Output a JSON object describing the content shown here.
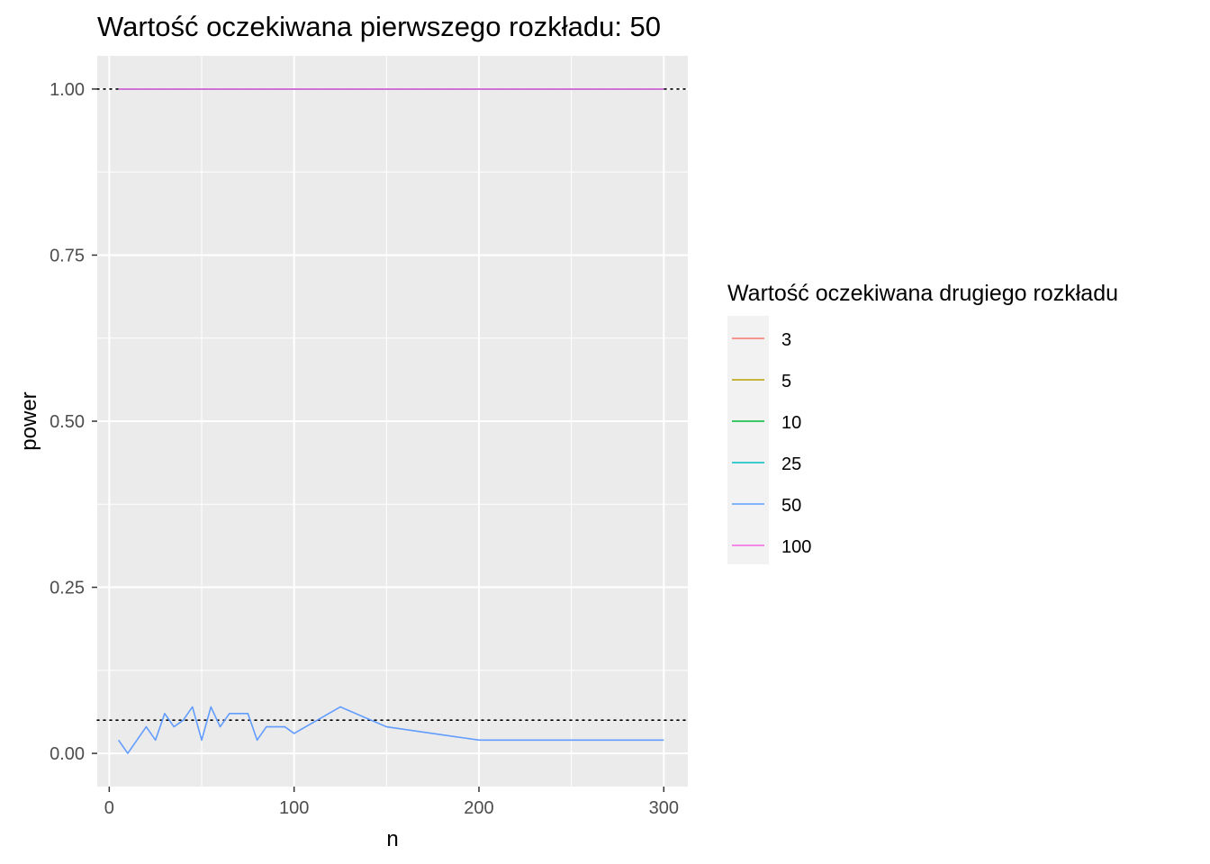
{
  "chart_data": {
    "type": "line",
    "title": "Wartość oczekiwana pierwszego rozkładu: 50",
    "xlabel": "n",
    "ylabel": "power",
    "xlim": [
      -6.5,
      313
    ],
    "ylim": [
      -0.05,
      1.05
    ],
    "x_ticks": [
      0,
      100,
      200,
      300
    ],
    "x_tick_labels": [
      "0",
      "100",
      "200",
      "300"
    ],
    "y_ticks": [
      0,
      0.25,
      0.5,
      0.75,
      1
    ],
    "y_tick_labels": [
      "0.00",
      "0.25",
      "0.50",
      "0.75",
      "1.00"
    ],
    "grid": true,
    "reference_lines": [
      {
        "y": 1.0,
        "style": "dotted",
        "color": "#000000"
      },
      {
        "y": 0.05,
        "style": "dotted",
        "color": "#000000"
      }
    ],
    "legend": {
      "title": "Wartość oczekiwana drugiego rozkładu",
      "position": "right"
    },
    "series": [
      {
        "name": "3",
        "color": "#F8766D",
        "x": [
          5,
          300
        ],
        "y": [
          1.0,
          1.0
        ]
      },
      {
        "name": "5",
        "color": "#B79F00",
        "x": [
          5,
          300
        ],
        "y": [
          1.0,
          1.0
        ]
      },
      {
        "name": "10",
        "color": "#00BA38",
        "x": [
          5,
          300
        ],
        "y": [
          1.0,
          1.0
        ]
      },
      {
        "name": "25",
        "color": "#00BFC4",
        "x": [
          5,
          300
        ],
        "y": [
          1.0,
          1.0
        ]
      },
      {
        "name": "50",
        "color": "#619CFF",
        "x": [
          5,
          10,
          20,
          25,
          30,
          35,
          40,
          45,
          50,
          55,
          60,
          65,
          70,
          75,
          80,
          85,
          90,
          95,
          100,
          125,
          150,
          200,
          250,
          300
        ],
        "y": [
          0.02,
          0.0,
          0.04,
          0.02,
          0.06,
          0.04,
          0.05,
          0.07,
          0.02,
          0.07,
          0.04,
          0.06,
          0.06,
          0.06,
          0.02,
          0.04,
          0.04,
          0.04,
          0.03,
          0.07,
          0.04,
          0.02,
          0.02,
          0.02
        ]
      },
      {
        "name": "100",
        "color": "#F564E3",
        "x": [
          5,
          300
        ],
        "y": [
          1.0,
          1.0
        ]
      }
    ]
  }
}
